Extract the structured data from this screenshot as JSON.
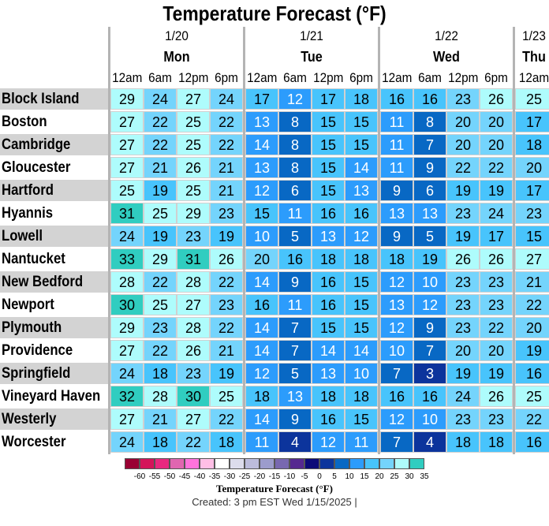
{
  "chart_data": {
    "type": "heatmap",
    "title": "Temperature Forecast (°F)",
    "days": [
      {
        "date": "1/20",
        "day": "Mon",
        "hours": [
          "12am",
          "6am",
          "12pm",
          "6pm"
        ]
      },
      {
        "date": "1/21",
        "day": "Tue",
        "hours": [
          "12am",
          "6am",
          "12pm",
          "6pm"
        ]
      },
      {
        "date": "1/22",
        "day": "Wed",
        "hours": [
          "12am",
          "6am",
          "12pm",
          "6pm"
        ]
      },
      {
        "date": "1/23",
        "day": "Thu",
        "hours": [
          "12am"
        ]
      }
    ],
    "rows": [
      {
        "name": "Block Island",
        "values": [
          29,
          24,
          27,
          24,
          17,
          12,
          17,
          18,
          16,
          16,
          23,
          26,
          25
        ]
      },
      {
        "name": "Boston",
        "values": [
          27,
          22,
          25,
          22,
          13,
          8,
          15,
          15,
          11,
          8,
          20,
          20,
          17
        ]
      },
      {
        "name": "Cambridge",
        "values": [
          27,
          22,
          25,
          22,
          14,
          8,
          15,
          15,
          11,
          7,
          20,
          20,
          18
        ]
      },
      {
        "name": "Gloucester",
        "values": [
          27,
          21,
          26,
          21,
          13,
          8,
          15,
          14,
          11,
          9,
          22,
          22,
          20
        ]
      },
      {
        "name": "Hartford",
        "values": [
          25,
          19,
          25,
          21,
          12,
          6,
          15,
          13,
          9,
          6,
          19,
          19,
          17
        ]
      },
      {
        "name": "Hyannis",
        "values": [
          31,
          25,
          29,
          23,
          15,
          11,
          16,
          16,
          13,
          13,
          23,
          24,
          23
        ]
      },
      {
        "name": "Lowell",
        "values": [
          24,
          19,
          23,
          19,
          10,
          5,
          13,
          12,
          9,
          5,
          19,
          17,
          15
        ]
      },
      {
        "name": "Nantucket",
        "values": [
          33,
          29,
          31,
          26,
          20,
          16,
          18,
          18,
          18,
          19,
          26,
          26,
          27
        ]
      },
      {
        "name": "New Bedford",
        "values": [
          28,
          22,
          28,
          22,
          14,
          9,
          16,
          15,
          12,
          10,
          23,
          23,
          21
        ]
      },
      {
        "name": "Newport",
        "values": [
          30,
          25,
          27,
          23,
          16,
          11,
          16,
          15,
          13,
          12,
          23,
          23,
          22
        ]
      },
      {
        "name": "Plymouth",
        "values": [
          29,
          23,
          28,
          22,
          14,
          7,
          15,
          15,
          12,
          9,
          23,
          22,
          20
        ]
      },
      {
        "name": "Providence",
        "values": [
          27,
          22,
          26,
          21,
          14,
          7,
          14,
          14,
          10,
          7,
          20,
          20,
          19
        ]
      },
      {
        "name": "Springfield",
        "values": [
          24,
          18,
          23,
          19,
          12,
          5,
          13,
          10,
          7,
          3,
          19,
          19,
          16
        ]
      },
      {
        "name": "Vineyard Haven",
        "values": [
          32,
          28,
          30,
          25,
          18,
          13,
          18,
          18,
          16,
          16,
          24,
          26,
          25
        ]
      },
      {
        "name": "Westerly",
        "values": [
          27,
          21,
          27,
          22,
          14,
          9,
          16,
          15,
          12,
          10,
          23,
          23,
          22
        ]
      },
      {
        "name": "Worcester",
        "values": [
          24,
          18,
          22,
          18,
          11,
          4,
          12,
          11,
          7,
          4,
          18,
          18,
          16
        ]
      }
    ],
    "colorbar": {
      "ticks": [
        "-60",
        "-55",
        "-50",
        "-45",
        "-40",
        "-35",
        "-30",
        "-25",
        "-20",
        "-15",
        "-10",
        "-5",
        "0",
        "5",
        "10",
        "15",
        "20",
        "25",
        "30",
        "35"
      ],
      "colors": [
        "#990033",
        "#d4145a",
        "#e8287f",
        "#e066b0",
        "#ff73dc",
        "#ffbfe6",
        "#ffffff",
        "#dcdcec",
        "#bcbcdc",
        "#9c9ccc",
        "#7868b0",
        "#562990",
        "#0c0a78",
        "#0c349c",
        "#0868c4",
        "#2c9cfc",
        "#48c4fc",
        "#74d4fc",
        "#aefcfc",
        "#30cdc0"
      ],
      "min": -65,
      "step": 5,
      "label": "Temperature Forecast (°F)"
    },
    "created": "Created: 3 pm EST Wed 1/15/2025  |"
  }
}
